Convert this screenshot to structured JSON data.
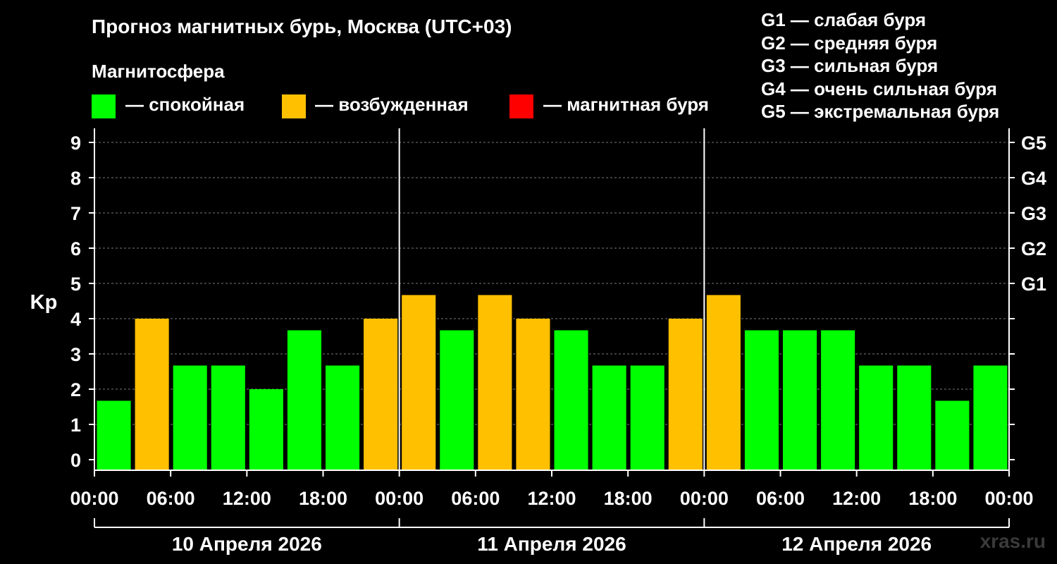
{
  "header": {
    "title": "Прогноз магнитных бурь, Москва (UTC+03)",
    "subtitle": "Магнитосфера"
  },
  "legend": [
    {
      "label": "— спокойная",
      "color": "#00ff00"
    },
    {
      "label": "— возбужденная",
      "color": "#ffc000"
    },
    {
      "label": "— магнитная буря",
      "color": "#ff0000"
    }
  ],
  "g_scale": [
    "G1 — слабая буря",
    "G2 — средняя буря",
    "G3 — сильная буря",
    "G4 — очень сильная буря",
    "G5 — экстремальная буря"
  ],
  "watermark": "xras.ru",
  "chart_data": {
    "type": "bar",
    "ylabel": "Kp",
    "ylim": [
      0,
      9
    ],
    "yticks": [
      "0",
      "1",
      "2",
      "3",
      "4",
      "5",
      "6",
      "7",
      "8",
      "9"
    ],
    "right_ticks": [
      {
        "y": 5,
        "label": "G1"
      },
      {
        "y": 6,
        "label": "G2"
      },
      {
        "y": 7,
        "label": "G3"
      },
      {
        "y": 8,
        "label": "G4"
      },
      {
        "y": 9,
        "label": "G5"
      }
    ],
    "xticks": [
      "00:00",
      "06:00",
      "12:00",
      "18:00",
      "00:00",
      "06:00",
      "12:00",
      "18:00",
      "00:00",
      "06:00",
      "12:00",
      "18:00",
      "00:00"
    ],
    "days": [
      "10 Апреля 2026",
      "11 Апреля 2026",
      "12 Апреля 2026"
    ],
    "interval_hours": 3,
    "values": [
      1.67,
      4.0,
      2.67,
      2.67,
      2.0,
      3.67,
      2.67,
      4.0,
      4.67,
      3.67,
      4.67,
      4.0,
      3.67,
      2.67,
      2.67,
      4.0,
      4.67,
      3.67,
      3.67,
      3.67,
      2.67,
      2.67,
      1.67,
      2.67
    ],
    "levels": [
      "calm",
      "active",
      "calm",
      "calm",
      "calm",
      "calm",
      "calm",
      "active",
      "active",
      "calm",
      "active",
      "active",
      "calm",
      "calm",
      "calm",
      "active",
      "active",
      "calm",
      "calm",
      "calm",
      "calm",
      "calm",
      "calm",
      "calm"
    ],
    "level_colors": {
      "calm": "#00ff00",
      "active": "#ffc000",
      "storm": "#ff0000"
    },
    "grid": "dashed horizontal at each Kp unit"
  }
}
